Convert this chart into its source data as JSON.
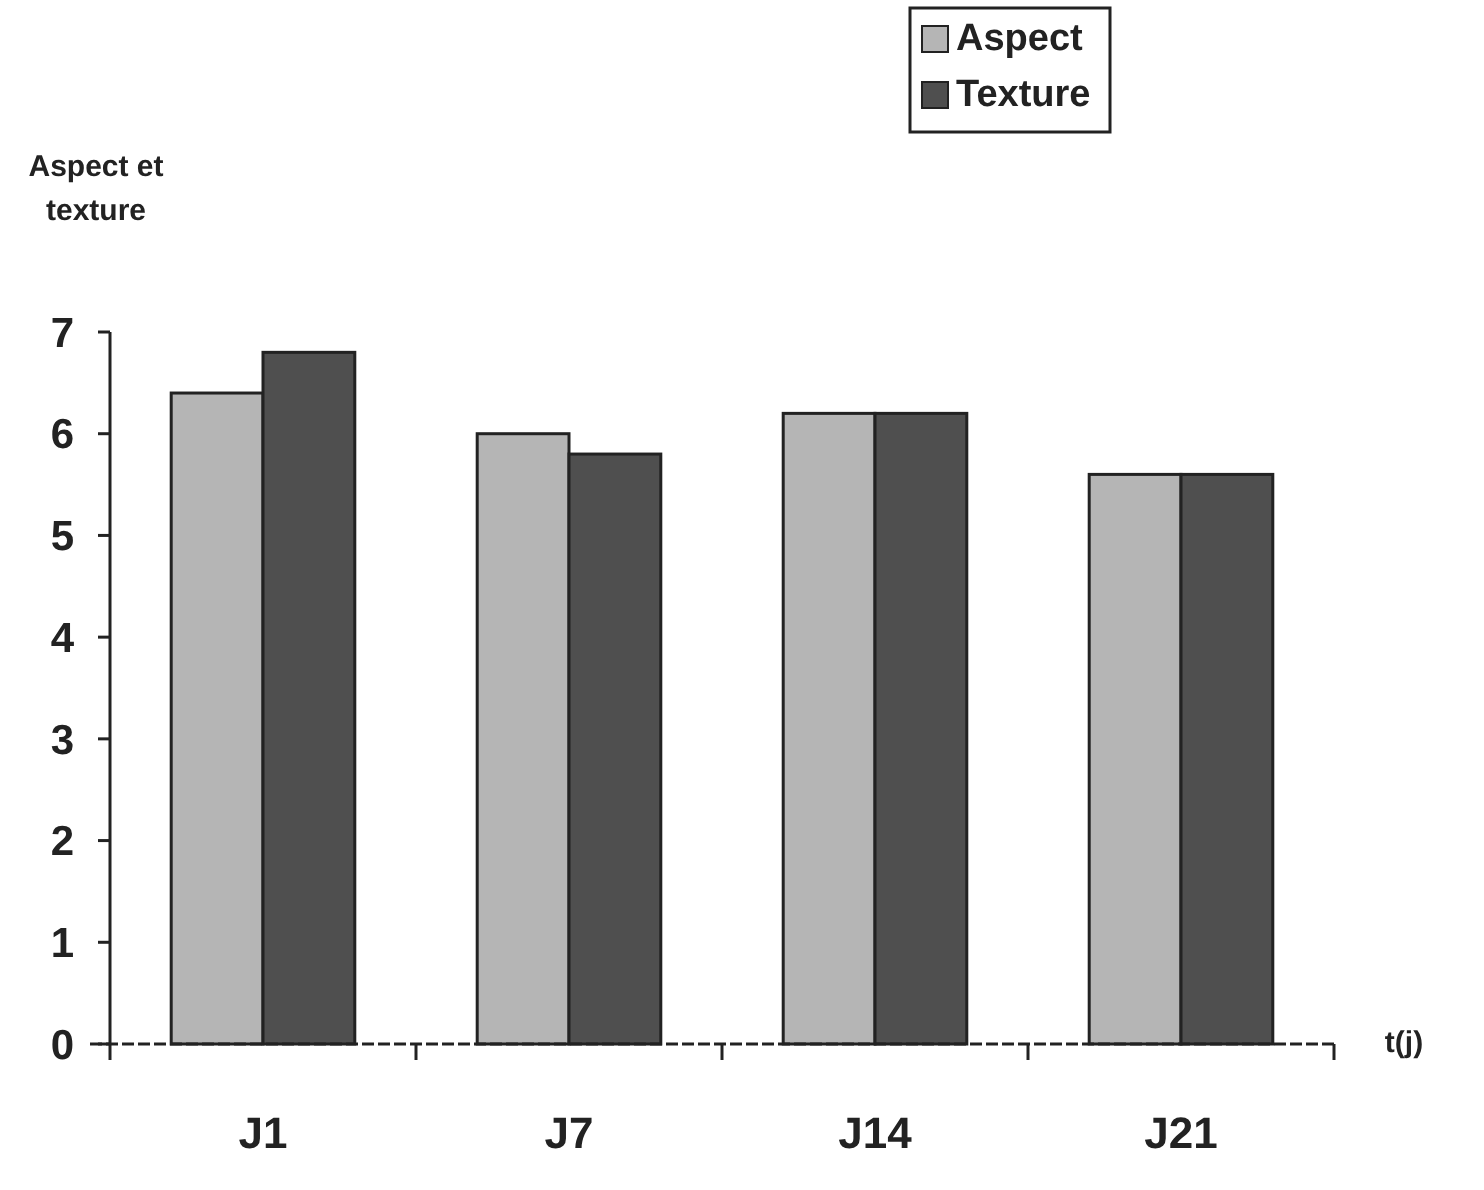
{
  "chart_data": {
    "type": "bar",
    "ylabel": "Aspect et\ntexture",
    "xlabel": "t(j)",
    "categories": [
      "J1",
      "J7",
      "J14",
      "J21"
    ],
    "series": [
      {
        "name": "Aspect",
        "color": "#b5b5b5",
        "values": [
          6.4,
          6.0,
          6.2,
          5.6
        ]
      },
      {
        "name": "Texture",
        "color": "#4f4f4f",
        "values": [
          6.8,
          5.8,
          6.2,
          5.6
        ]
      }
    ],
    "ylim": [
      0,
      7
    ],
    "yticks": [
      0,
      1,
      2,
      3,
      4,
      5,
      6,
      7
    ],
    "grid": false,
    "legend": "top right"
  }
}
